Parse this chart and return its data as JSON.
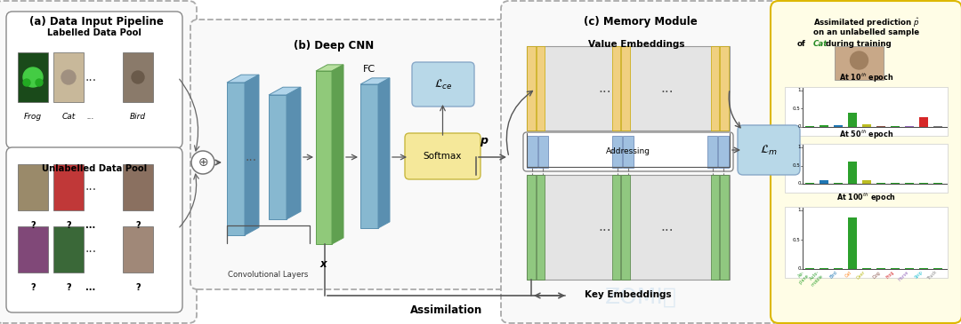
{
  "title_a": "(a) Data Input Pipeline",
  "title_b": "(b) Deep CNN",
  "title_c": "(c) Memory Module",
  "labelled_title": "Labelled Data Pool",
  "unlabelled_title": "Unlabelled Data Pool",
  "conv_label": "Convolutional Layers",
  "fc_label": "FC",
  "softmax_label": "Softmax",
  "lce_label": "$\\mathcal{L}_{ce}$",
  "lm_label": "$\\mathcal{L}_{m}$",
  "p_label": "$\\boldsymbol{p}$",
  "x_label": "$\\boldsymbol{x}$",
  "assimilation_label": "Assimilation",
  "addressing_label": "Addressing",
  "value_emb_label": "Value Embeddings",
  "key_emb_label": "Key Embeddings",
  "epoch_labels": [
    "At 10$^{th}$ epoch",
    "At 50$^{th}$ epoch",
    "At 100$^{th}$ epoch"
  ],
  "bar_categories": [
    "Air-\nplane",
    "Auto-\nmobile",
    "Bird",
    "Cat",
    "Deer",
    "Dog",
    "Frog",
    "Horse",
    "Ship",
    "Truck"
  ],
  "bar_cats_short": [
    "Air\nplane",
    "Auto\nmobile",
    "Bird",
    "Cat",
    "Deer",
    "Dog",
    "Frog",
    "Horse",
    "Ship",
    "Truck"
  ],
  "bar_cat_colors": [
    "#2ca02c",
    "#2ca02c",
    "#1f77b4",
    "#ff7f0e",
    "#bcbd22",
    "#8c564b",
    "#d62728",
    "#9467bd",
    "#17becf",
    "#7f7f7f"
  ],
  "bar_data_10": [
    0.02,
    0.05,
    0.05,
    0.38,
    0.07,
    0.02,
    0.02,
    0.02,
    0.27,
    0.02
  ],
  "bar_data_50": [
    0.02,
    0.1,
    0.02,
    0.6,
    0.1,
    0.02,
    0.02,
    0.02,
    0.02,
    0.02
  ],
  "bar_data_100": [
    0.01,
    0.01,
    0.01,
    0.88,
    0.01,
    0.01,
    0.01,
    0.01,
    0.01,
    0.01
  ],
  "bar_colors_10": [
    "#2ca02c",
    "#2ca02c",
    "#1f77b4",
    "#2ca02c",
    "#bcbd22",
    "#8c564b",
    "#2ca02c",
    "#9467bd",
    "#d62728",
    "#7f7f7f"
  ],
  "bar_colors_50": [
    "#2ca02c",
    "#1f77b4",
    "#2ca02c",
    "#2ca02c",
    "#bcbd22",
    "#2ca02c",
    "#2ca02c",
    "#2ca02c",
    "#2ca02c",
    "#2ca02c"
  ],
  "bar_colors_100": [
    "#2ca02c",
    "#2ca02c",
    "#2ca02c",
    "#2ca02c",
    "#2ca02c",
    "#2ca02c",
    "#2ca02c",
    "#2ca02c",
    "#2ca02c",
    "#2ca02c"
  ],
  "bg_color": "#ffffff",
  "dashed_border": "#aaaaaa",
  "blue_layer": "#87b8d0",
  "blue_layer_dark": "#5590a8",
  "green_layer": "#90c97a",
  "green_layer_dark": "#608050",
  "yellow_softmax": "#f5e89a",
  "light_blue_box": "#b8d8e8",
  "yellow_memory": "#f0d080",
  "green_memory": "#90c880"
}
